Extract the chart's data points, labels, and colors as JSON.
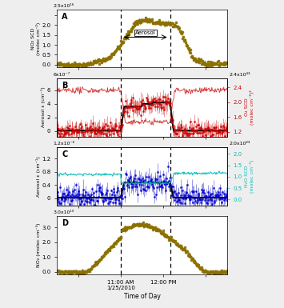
{
  "panel_A": {
    "label": "A",
    "ylabel": "NO₂ SCD\n(molec cm⁻²)",
    "yexp": "2.5x10¹⁶",
    "color": "#8B7000",
    "aerosol_label": "Aerosol"
  },
  "panel_B": {
    "label": "B",
    "ylabel_left": "Aerosol ε (cm⁻¹)",
    "yexp_left": "6x10⁻⁷",
    "ylabel_right": "O₄ SCD\n(molec cm⁻²)²",
    "yexp_right": "2.4x10⁴³",
    "color_scatter": "#CC0000",
    "color_line": "#000000"
  },
  "panel_C": {
    "label": "C",
    "ylabel_left": "Aerosol ε (cm⁻¹)",
    "yexp_left": "1.2x10⁻⁶",
    "ylabel_right": "H₂O SCD\n(molec cm⁻²)",
    "yexp_right": "2.0x10²³",
    "color_scatter": "#0000CC",
    "color_cyan": "#00BBBB",
    "color_line": "#000000"
  },
  "panel_D": {
    "label": "D",
    "ylabel": "NO₂ (molec cm⁻³)",
    "yexp": "3.0x10¹⁰",
    "color": "#8B7000"
  },
  "xlabel": "Time of Day",
  "background_color": "#eeeeee"
}
